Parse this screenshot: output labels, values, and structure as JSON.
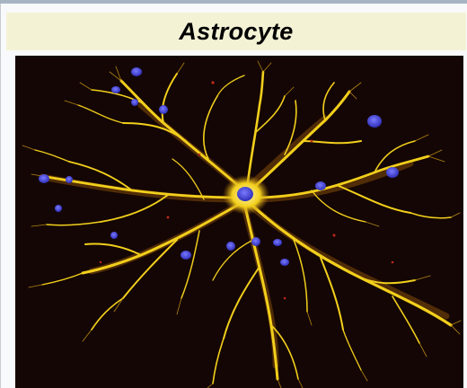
{
  "infobox": {
    "title": "Astrocyte"
  },
  "image": {
    "subject": "astrocyte-micrograph",
    "colors": {
      "background": "#140604",
      "processes": "#f2cf1c",
      "process_glow": "#d08a12",
      "nuclei": "#3f3fd9",
      "specks": "#c0281a"
    }
  }
}
